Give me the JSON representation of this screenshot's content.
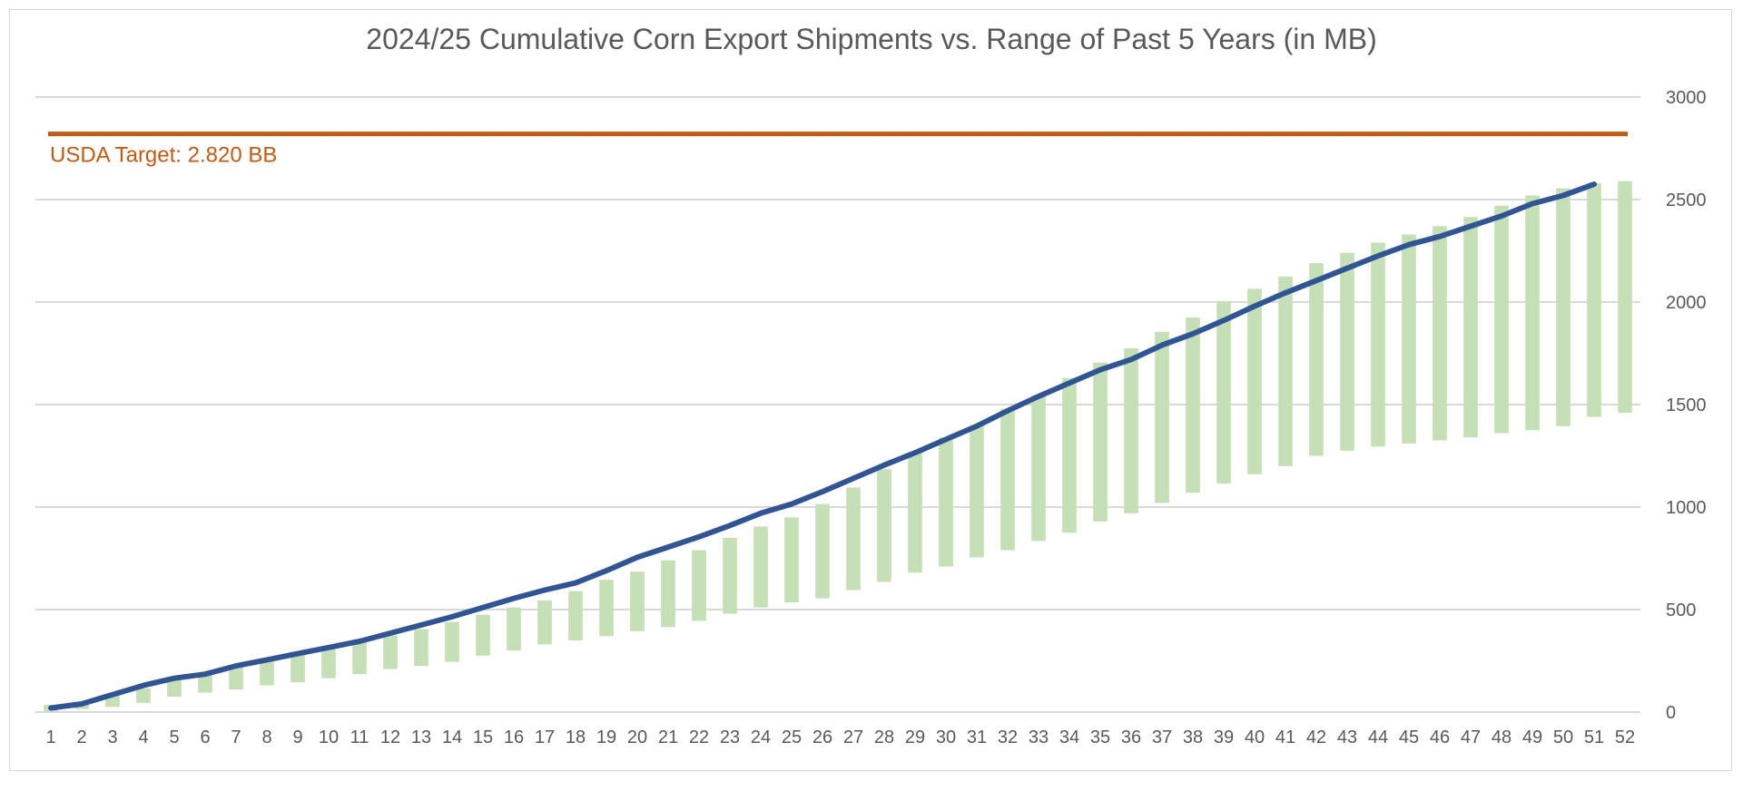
{
  "chart_data": {
    "type": "line",
    "title": "2024/25 Cumulative Corn Export Shipments vs. Range of Past 5 Years (in MB)",
    "xlabel": "",
    "ylabel": "",
    "ylim": [
      0,
      3000
    ],
    "yticks": [
      0,
      500,
      1000,
      1500,
      2000,
      2500,
      3000
    ],
    "y_axis_side": "right",
    "grid": true,
    "legend": "none",
    "colors": {
      "range": "#c5e0b4",
      "current": "#2f5597",
      "target": "#c55a11",
      "grid": "#d9d9d9",
      "text": "#595959"
    },
    "x": [
      1,
      2,
      3,
      4,
      5,
      6,
      7,
      8,
      9,
      10,
      11,
      12,
      13,
      14,
      15,
      16,
      17,
      18,
      19,
      20,
      21,
      22,
      23,
      24,
      25,
      26,
      27,
      28,
      29,
      30,
      31,
      32,
      33,
      34,
      35,
      36,
      37,
      38,
      39,
      40,
      41,
      42,
      43,
      44,
      45,
      46,
      47,
      48,
      49,
      50,
      51,
      52
    ],
    "range_low": [
      5,
      15,
      25,
      45,
      75,
      95,
      110,
      130,
      145,
      165,
      185,
      210,
      225,
      245,
      275,
      300,
      330,
      350,
      370,
      395,
      415,
      445,
      480,
      510,
      535,
      555,
      595,
      635,
      680,
      710,
      755,
      790,
      835,
      875,
      930,
      970,
      1020,
      1070,
      1115,
      1160,
      1200,
      1250,
      1275,
      1295,
      1310,
      1325,
      1340,
      1360,
      1375,
      1395,
      1440,
      1460
    ],
    "range_high": [
      35,
      50,
      80,
      115,
      160,
      190,
      225,
      255,
      285,
      315,
      345,
      375,
      405,
      440,
      475,
      510,
      545,
      590,
      645,
      685,
      740,
      790,
      850,
      905,
      950,
      1015,
      1095,
      1185,
      1270,
      1340,
      1400,
      1480,
      1545,
      1630,
      1705,
      1775,
      1855,
      1925,
      2005,
      2065,
      2125,
      2190,
      2240,
      2290,
      2330,
      2370,
      2415,
      2470,
      2520,
      2555,
      2580,
      2590
    ],
    "current": [
      20,
      40,
      85,
      130,
      165,
      185,
      225,
      255,
      285,
      315,
      345,
      385,
      425,
      465,
      510,
      555,
      595,
      630,
      690,
      755,
      805,
      855,
      910,
      970,
      1015,
      1075,
      1140,
      1205,
      1265,
      1330,
      1395,
      1470,
      1540,
      1605,
      1670,
      1720,
      1790,
      1845,
      1910,
      1980,
      2045,
      2105,
      2165,
      2225,
      2280,
      2320,
      2370,
      2420,
      2480,
      2520,
      2575
    ],
    "target": {
      "value": 2820,
      "label": "USDA Target: 2.820 BB"
    }
  }
}
